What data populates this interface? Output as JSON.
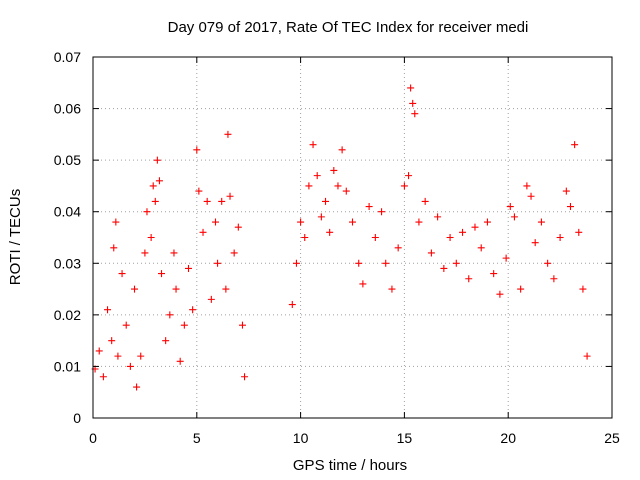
{
  "chart_data": {
    "type": "scatter",
    "title": "Day 079 of 2017, Rate Of TEC Index for receiver medi",
    "xlabel": "GPS time / hours",
    "ylabel": "ROTI / TECUs",
    "xlim": [
      0,
      25
    ],
    "ylim": [
      0,
      0.07
    ],
    "xticks": [
      "0",
      "5",
      "10",
      "15",
      "20",
      "25"
    ],
    "yticks": [
      "0",
      "0.01",
      "0.02",
      "0.03",
      "0.04",
      "0.05",
      "0.06",
      "0.07"
    ],
    "grid": true,
    "marker": "plus",
    "color": "#ff0000",
    "data_gap_hours": [
      7.4,
      9.5
    ],
    "series": [
      {
        "points": [
          [
            0.1,
            0.0095
          ],
          [
            0.3,
            0.013
          ],
          [
            0.5,
            0.008
          ],
          [
            0.7,
            0.021
          ],
          [
            0.9,
            0.015
          ],
          [
            1.0,
            0.033
          ],
          [
            1.1,
            0.038
          ],
          [
            1.2,
            0.012
          ],
          [
            1.4,
            0.028
          ],
          [
            1.6,
            0.018
          ],
          [
            1.8,
            0.01
          ],
          [
            2.0,
            0.025
          ],
          [
            2.1,
            0.006
          ],
          [
            2.3,
            0.012
          ],
          [
            2.5,
            0.032
          ],
          [
            2.6,
            0.04
          ],
          [
            2.8,
            0.035
          ],
          [
            2.9,
            0.045
          ],
          [
            3.0,
            0.042
          ],
          [
            3.1,
            0.05
          ],
          [
            3.2,
            0.046
          ],
          [
            3.3,
            0.028
          ],
          [
            3.5,
            0.015
          ],
          [
            3.7,
            0.02
          ],
          [
            3.9,
            0.032
          ],
          [
            4.0,
            0.025
          ],
          [
            4.2,
            0.011
          ],
          [
            4.4,
            0.018
          ],
          [
            4.6,
            0.029
          ],
          [
            4.8,
            0.021
          ],
          [
            5.0,
            0.052
          ],
          [
            5.1,
            0.044
          ],
          [
            5.3,
            0.036
          ],
          [
            5.5,
            0.042
          ],
          [
            5.7,
            0.023
          ],
          [
            5.9,
            0.038
          ],
          [
            6.0,
            0.03
          ],
          [
            6.2,
            0.042
          ],
          [
            6.4,
            0.025
          ],
          [
            6.5,
            0.055
          ],
          [
            6.6,
            0.043
          ],
          [
            6.8,
            0.032
          ],
          [
            7.0,
            0.037
          ],
          [
            7.2,
            0.018
          ],
          [
            7.3,
            0.008
          ],
          [
            9.6,
            0.022
          ],
          [
            9.8,
            0.03
          ],
          [
            10.0,
            0.038
          ],
          [
            10.2,
            0.035
          ],
          [
            10.4,
            0.045
          ],
          [
            10.6,
            0.053
          ],
          [
            10.8,
            0.047
          ],
          [
            11.0,
            0.039
          ],
          [
            11.2,
            0.042
          ],
          [
            11.4,
            0.036
          ],
          [
            11.6,
            0.048
          ],
          [
            11.8,
            0.045
          ],
          [
            12.0,
            0.052
          ],
          [
            12.2,
            0.044
          ],
          [
            12.5,
            0.038
          ],
          [
            12.8,
            0.03
          ],
          [
            13.0,
            0.026
          ],
          [
            13.3,
            0.041
          ],
          [
            13.6,
            0.035
          ],
          [
            13.9,
            0.04
          ],
          [
            14.1,
            0.03
          ],
          [
            14.4,
            0.025
          ],
          [
            14.7,
            0.033
          ],
          [
            15.0,
            0.045
          ],
          [
            15.2,
            0.047
          ],
          [
            15.3,
            0.064
          ],
          [
            15.4,
            0.061
          ],
          [
            15.5,
            0.059
          ],
          [
            15.7,
            0.038
          ],
          [
            16.0,
            0.042
          ],
          [
            16.3,
            0.032
          ],
          [
            16.6,
            0.039
          ],
          [
            16.9,
            0.029
          ],
          [
            17.2,
            0.035
          ],
          [
            17.5,
            0.03
          ],
          [
            17.8,
            0.036
          ],
          [
            18.1,
            0.027
          ],
          [
            18.4,
            0.037
          ],
          [
            18.7,
            0.033
          ],
          [
            19.0,
            0.038
          ],
          [
            19.3,
            0.028
          ],
          [
            19.6,
            0.024
          ],
          [
            19.9,
            0.031
          ],
          [
            20.1,
            0.041
          ],
          [
            20.3,
            0.039
          ],
          [
            20.6,
            0.025
          ],
          [
            20.9,
            0.045
          ],
          [
            21.1,
            0.043
          ],
          [
            21.3,
            0.034
          ],
          [
            21.6,
            0.038
          ],
          [
            21.9,
            0.03
          ],
          [
            22.2,
            0.027
          ],
          [
            22.5,
            0.035
          ],
          [
            22.8,
            0.044
          ],
          [
            23.0,
            0.041
          ],
          [
            23.2,
            0.053
          ],
          [
            23.4,
            0.036
          ],
          [
            23.6,
            0.025
          ],
          [
            23.8,
            0.012
          ]
        ]
      }
    ]
  }
}
